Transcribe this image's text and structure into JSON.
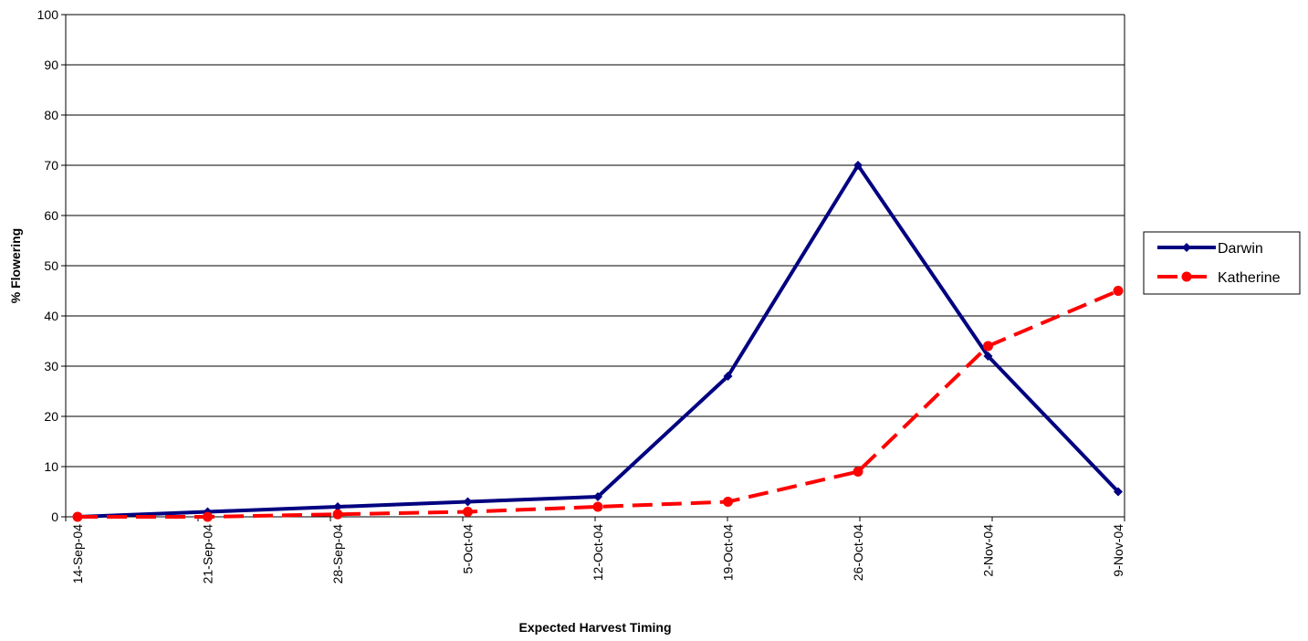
{
  "chart_data": {
    "type": "line",
    "title": "",
    "xlabel": "Expected Harvest Timing",
    "ylabel": "% Flowering",
    "ylim": [
      0,
      100
    ],
    "yticks": [
      "0",
      "10",
      "20",
      "30",
      "40",
      "50",
      "60",
      "70",
      "80",
      "90",
      "100"
    ],
    "categories": [
      "14-Sep-04",
      "21-Sep-04",
      "28-Sep-04",
      "5-Oct-04",
      "12-Oct-04",
      "19-Oct-04",
      "26-Oct-04",
      "2-Nov-04",
      "9-Nov-04"
    ],
    "grid": "horizontal",
    "legend_position": "right",
    "series": [
      {
        "name": "Darwin",
        "color": "#000080",
        "line_style": "solid",
        "marker": "diamond",
        "values": [
          0,
          1,
          2,
          3,
          4,
          28,
          70,
          32,
          5
        ]
      },
      {
        "name": "Katherine",
        "color": "#ff0000",
        "line_style": "dashed",
        "marker": "circle",
        "values": [
          0,
          0,
          0.5,
          1,
          2,
          3,
          9,
          34,
          45
        ]
      }
    ]
  }
}
